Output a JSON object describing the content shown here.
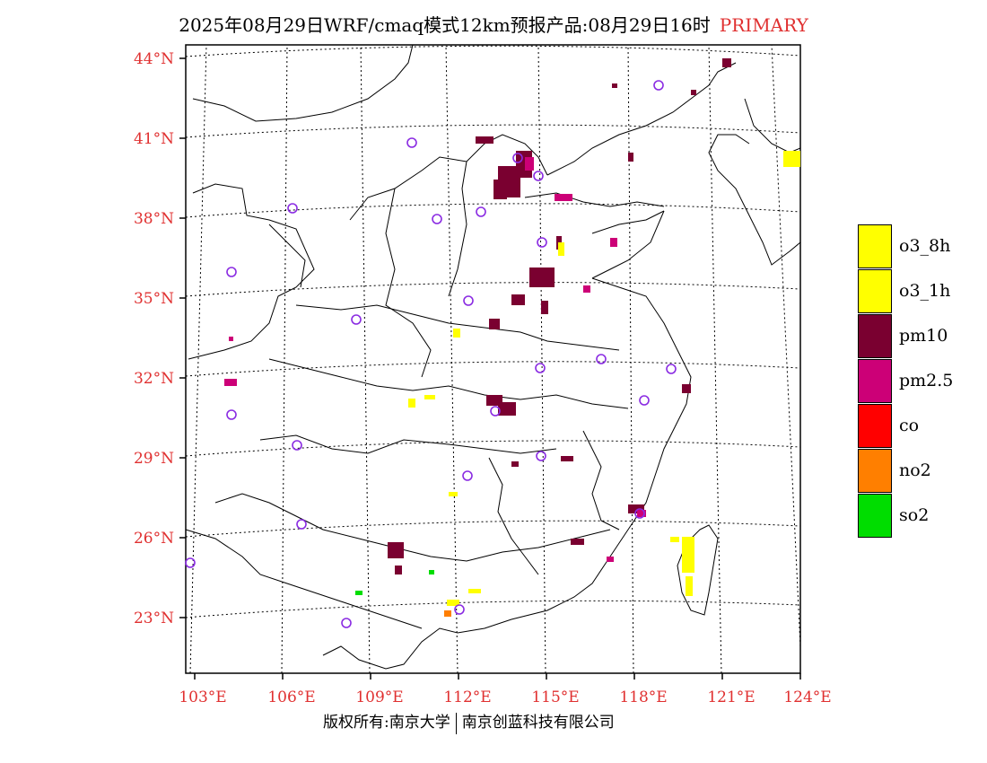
{
  "title": {
    "main": "2025年08月29日WRF/cmaq模式12km预报产品:08月29日16时",
    "tag": "PRIMARY"
  },
  "footer": {
    "left": "版权所有:南京大学",
    "right": "南京创蓝科技有限公司"
  },
  "map": {
    "lat_labels": [
      "44°N",
      "41°N",
      "38°N",
      "35°N",
      "32°N",
      "29°N",
      "26°N",
      "23°N"
    ],
    "lon_labels": [
      "103°E",
      "106°E",
      "109°E",
      "112°E",
      "115°E",
      "118°E",
      "121°E",
      "124°E"
    ],
    "lat_range": [
      21,
      44.5
    ],
    "lon_range": [
      103,
      124
    ]
  },
  "colors": {
    "o3_8h": "#ffff00",
    "o3_1h": "#ffff00",
    "pm10": "#7a0030",
    "pm2_5": "#cc0077",
    "co": "#ff0000",
    "no2": "#ff7f00",
    "so2": "#00dd00",
    "station": "#8a2be2",
    "label": "#e03030"
  },
  "legend": [
    {
      "label": "o3_8h",
      "color": "#ffff00"
    },
    {
      "label": "o3_1h",
      "color": "#ffff00"
    },
    {
      "label": "pm10",
      "color": "#7a0030"
    },
    {
      "label": "pm2.5",
      "color": "#cc0077"
    },
    {
      "label": "co",
      "color": "#ff0000"
    },
    {
      "label": "no2",
      "color": "#ff7f00"
    },
    {
      "label": "so2",
      "color": "#00dd00"
    }
  ]
}
